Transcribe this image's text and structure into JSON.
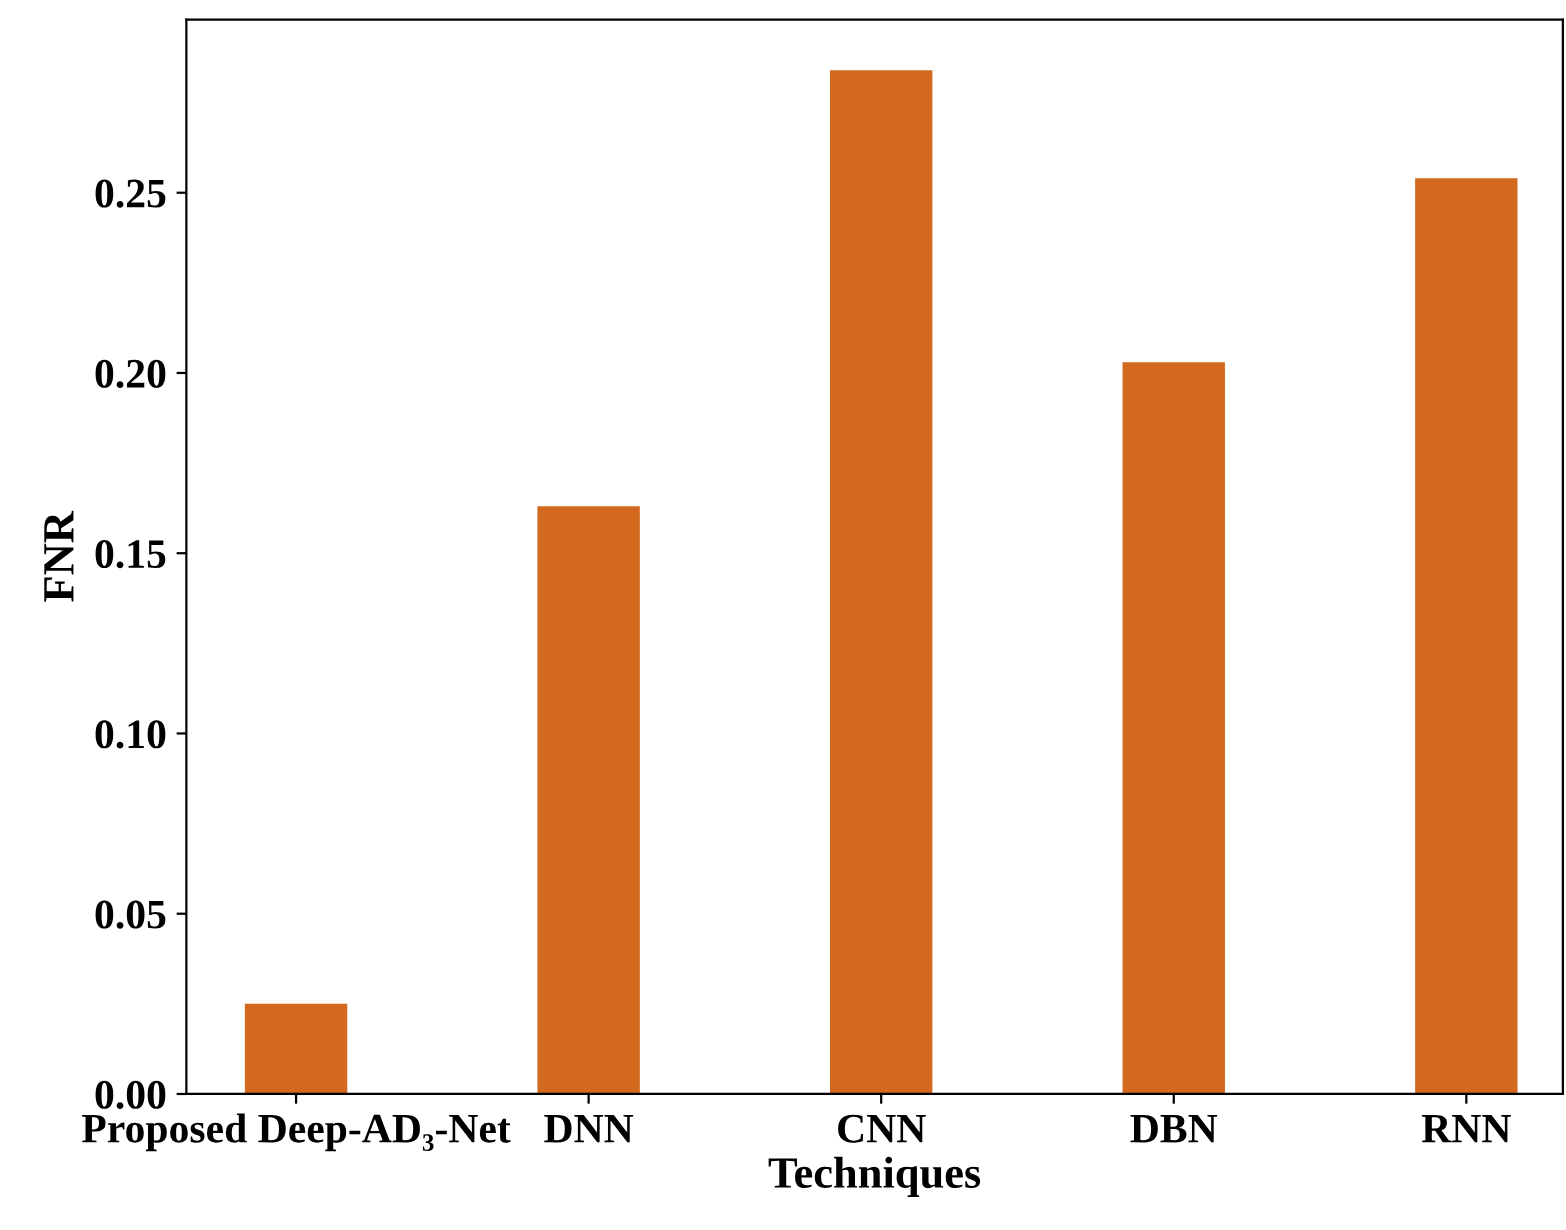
{
  "chart_data": {
    "type": "bar",
    "xlabel": "Techniques",
    "ylabel": "FNR",
    "categories": [
      "Proposed Deep-AD₃-Net",
      "DNN",
      "CNN",
      "DBN",
      "RNN"
    ],
    "values": [
      0.025,
      0.163,
      0.284,
      0.203,
      0.254
    ],
    "color": "#d2691e",
    "ylim": [
      0,
      0.298
    ],
    "yticks": [
      {
        "value": 0,
        "label": "0.00"
      },
      {
        "value": 0.05,
        "label": "0.05"
      },
      {
        "value": 0.1,
        "label": "0.10"
      },
      {
        "value": 0.15,
        "label": "0.15"
      },
      {
        "value": 0.2,
        "label": "0.20"
      },
      {
        "value": 0.25,
        "label": "0.25"
      }
    ],
    "grid": false
  }
}
